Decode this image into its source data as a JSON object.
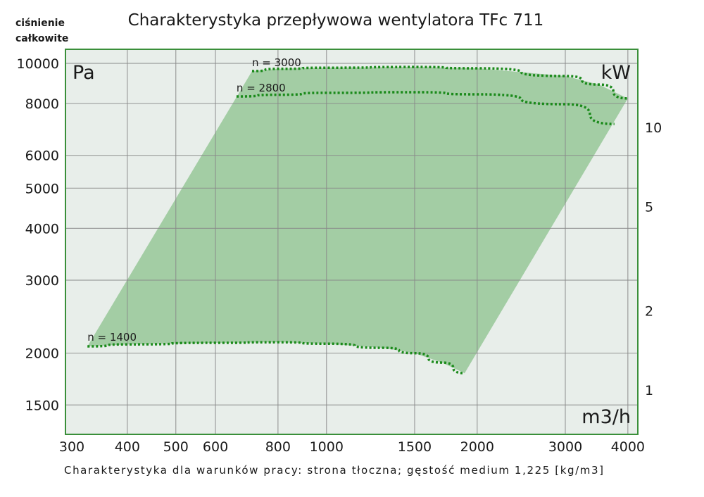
{
  "chart_data": {
    "type": "line",
    "title": "Charakterystyka przepływowa wentylatora TFc 711",
    "ylabel": "ciśnienie całkowite",
    "y_unit": "Pa",
    "x_unit": "m3/h",
    "y2_unit": "kW",
    "footnote": "Charakterystyka dla warunków pracy: strona tłoczna; gęstość medium 1,225 [kg/m3]",
    "x_scale": "log",
    "y_scale": "log",
    "xlim": [
      300,
      4300
    ],
    "ylim": [
      1270,
      10700
    ],
    "x_ticks": [
      300,
      400,
      500,
      600,
      800,
      1000,
      1500,
      2000,
      3000,
      4000
    ],
    "y_ticks": [
      1500,
      2000,
      3000,
      4000,
      5000,
      6000,
      8000,
      10000
    ],
    "y2_ticks": [
      1,
      2,
      5,
      10
    ],
    "grid": true,
    "series": [
      {
        "name": "n = 3000",
        "x": [
          710,
          800,
          1000,
          1500,
          2000,
          3000,
          3500,
          4000
        ],
        "y": [
          9580,
          9700,
          9760,
          9800,
          9730,
          9320,
          8890,
          8230
        ]
      },
      {
        "name": "n = 2800",
        "x": [
          661,
          800,
          1000,
          1500,
          2000,
          3000,
          3760
        ],
        "y": [
          8320,
          8400,
          8490,
          8520,
          8420,
          7970,
          7140
        ]
      },
      {
        "name": "n = 1400",
        "x": [
          333,
          400,
          600,
          800,
          1000,
          1300,
          1500,
          1700,
          1888
        ],
        "y": [
          2077,
          2100,
          2118,
          2125,
          2108,
          2060,
          2000,
          1898,
          1790
        ]
      }
    ],
    "colors": {
      "fill": "#a3cda4",
      "line": "#1a8a1a",
      "plot_bg": "#e8eeea",
      "border": "#3a8f3a",
      "grid": "#8a8a8a"
    }
  }
}
